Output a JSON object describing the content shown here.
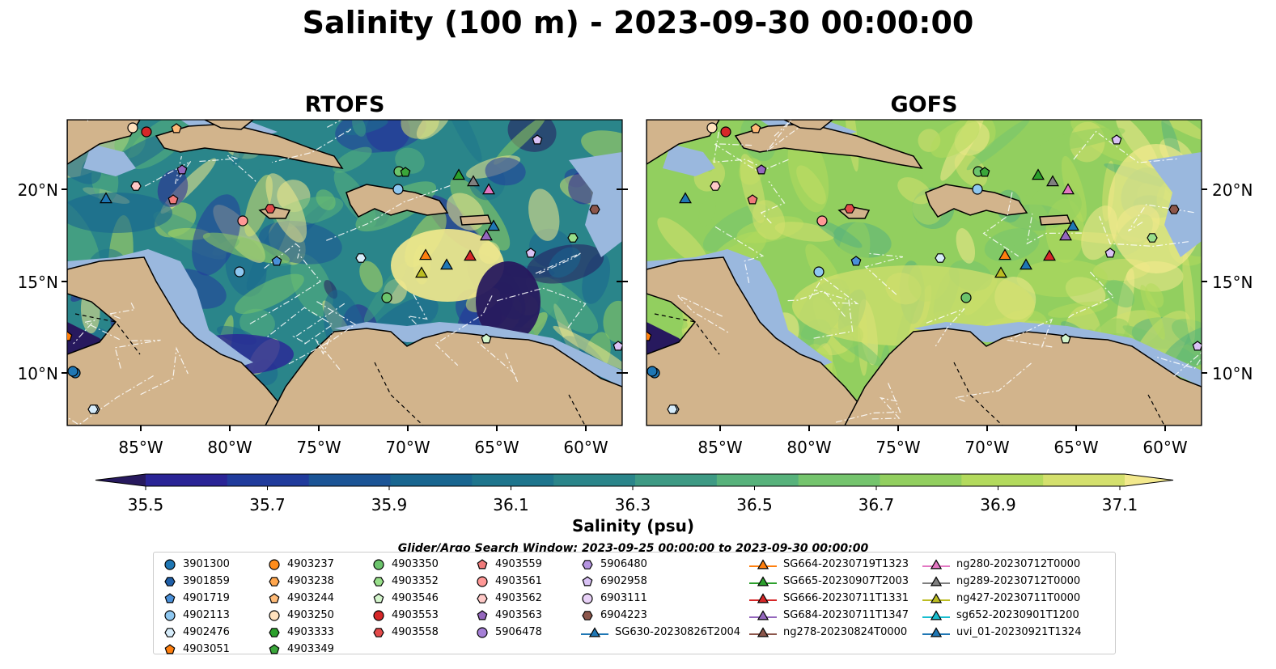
{
  "title": "Salinity (100 m) - 2023-09-30 00:00:00",
  "panels": [
    {
      "title": "RTOFS"
    },
    {
      "title": "GOFS"
    }
  ],
  "lat_labels": [
    "20°N",
    "15°N",
    "10°N"
  ],
  "lon_labels": [
    "85°W",
    "80°W",
    "75°W",
    "70°W",
    "65°W",
    "60°W"
  ],
  "colorbar": {
    "label": "Salinity (psu)",
    "ticks": [
      "35.5",
      "35.7",
      "35.9",
      "36.1",
      "36.3",
      "36.5",
      "36.7",
      "36.9",
      "37.1"
    ],
    "colors": [
      "#27195e",
      "#2a2496",
      "#203b9c",
      "#1b5496",
      "#196690",
      "#1e758d",
      "#2a858a",
      "#3e9a84",
      "#57b27b",
      "#74c46d",
      "#92cf5f",
      "#b3da5d",
      "#d4e06d",
      "#f3e98d"
    ]
  },
  "legend_title": "Glider/Argo Search Window: 2023-09-25 00:00:00 to 2023-09-30 00:00:00",
  "legend": [
    {
      "label": "3901300",
      "marker": "circle",
      "color": "#1f77b4"
    },
    {
      "label": "3901859",
      "marker": "hexagon",
      "color": "#1f5fa8"
    },
    {
      "label": "4901719",
      "marker": "pentagon",
      "color": "#4a90d9"
    },
    {
      "label": "4902113",
      "marker": "circle",
      "color": "#8ec7f0"
    },
    {
      "label": "4902476",
      "marker": "hexagon",
      "color": "#d6ecfa"
    },
    {
      "label": "4903051",
      "marker": "pentagon",
      "color": "#ff7f0e"
    },
    {
      "label": "4903237",
      "marker": "circle",
      "color": "#ff8c1a"
    },
    {
      "label": "4903238",
      "marker": "hexagon",
      "color": "#ffa64d"
    },
    {
      "label": "4903244",
      "marker": "pentagon",
      "color": "#ffbb78"
    },
    {
      "label": "4903250",
      "marker": "circle",
      "color": "#ffe1bd"
    },
    {
      "label": "4903333",
      "marker": "hexagon",
      "color": "#2ca02c"
    },
    {
      "label": "4903349",
      "marker": "pentagon",
      "color": "#3aa63a"
    },
    {
      "label": "4903350",
      "marker": "circle",
      "color": "#6cc46c"
    },
    {
      "label": "4903352",
      "marker": "hexagon",
      "color": "#98df8a"
    },
    {
      "label": "4903546",
      "marker": "pentagon",
      "color": "#d4f5cc"
    },
    {
      "label": "4903553",
      "marker": "circle",
      "color": "#d62728"
    },
    {
      "label": "4903558",
      "marker": "hexagon",
      "color": "#e34a4a"
    },
    {
      "label": "4903559",
      "marker": "pentagon",
      "color": "#f07a7a"
    },
    {
      "label": "4903561",
      "marker": "circle",
      "color": "#ff9896"
    },
    {
      "label": "4903562",
      "marker": "hexagon",
      "color": "#ffc9c7"
    },
    {
      "label": "4903563",
      "marker": "pentagon",
      "color": "#9467bd"
    },
    {
      "label": "5906478",
      "marker": "circle",
      "color": "#a57fd6"
    },
    {
      "label": "5906480",
      "marker": "hexagon",
      "color": "#b594e0"
    },
    {
      "label": "6902958",
      "marker": "pentagon",
      "color": "#d9c2f5"
    },
    {
      "label": "6903111",
      "marker": "circle",
      "color": "#e8d1f7"
    },
    {
      "label": "6904223",
      "marker": "hexagon",
      "color": "#8c564b"
    },
    {
      "label": "SG630-20230826T2004",
      "marker": "triangle",
      "color": "#1f77b4",
      "line": true
    },
    {
      "label": "SG664-20230719T1323",
      "marker": "triangle",
      "color": "#ff7f0e",
      "line": true
    },
    {
      "label": "SG665-20230907T2003",
      "marker": "triangle",
      "color": "#2ca02c",
      "line": true
    },
    {
      "label": "SG666-20230711T1331",
      "marker": "triangle",
      "color": "#d62728",
      "line": true
    },
    {
      "label": "SG684-20230711T1347",
      "marker": "triangle",
      "color": "#9467bd",
      "line": true
    },
    {
      "label": "ng278-20230824T0000",
      "marker": "triangle",
      "color": "#8c564b",
      "line": true
    },
    {
      "label": "ng280-20230712T0000",
      "marker": "triangle",
      "color": "#e377c2",
      "line": true
    },
    {
      "label": "ng289-20230712T0000",
      "marker": "triangle",
      "color": "#7f7f7f",
      "line": true
    },
    {
      "label": "ng427-20230711T0000",
      "marker": "triangle",
      "color": "#bcbd22",
      "line": true
    },
    {
      "label": "sg652-20230901T1200",
      "marker": "triangle",
      "color": "#17becf",
      "line": true
    },
    {
      "label": "uvi_01-20230921T1324",
      "marker": "triangle",
      "color": "#1f77b4",
      "line": true
    }
  ],
  "map_colors": {
    "land": "#d2b48c",
    "shelf": "#9ab8de",
    "river": "#9ab8de",
    "coast": "#000000",
    "grid": "#ffffff"
  }
}
